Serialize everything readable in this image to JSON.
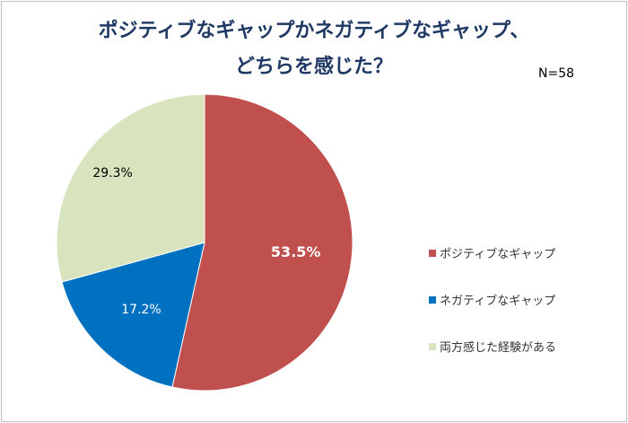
{
  "note": "N=58",
  "chart_data": {
    "type": "pie",
    "title_lines": [
      "ポジティブなギャップかネガティブなギャップ、",
      "どちらを感じた？"
    ],
    "categories": [
      "ポジティブなギャップ",
      "ネガティブなギャップ",
      "両方感じた経験がある"
    ],
    "values": [
      53.5,
      17.2,
      29.3
    ],
    "value_labels": [
      "53.5%",
      "17.2%",
      "29.3%"
    ],
    "colors": [
      "#c0504d",
      "#0070c0",
      "#d7e4bd"
    ],
    "label_colors": [
      "#ffffff",
      "#ffffff",
      "#000000"
    ],
    "legend_position": "right"
  }
}
